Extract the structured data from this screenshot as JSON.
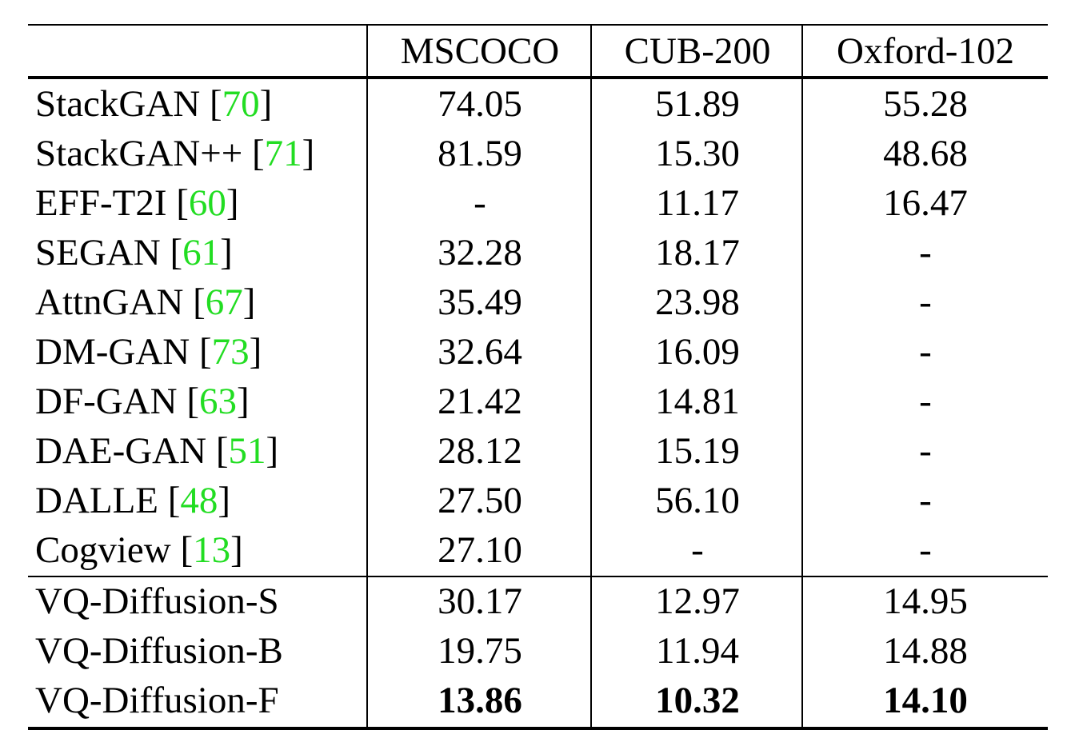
{
  "columns": [
    "MSCOCO",
    "CUB-200",
    "Oxford-102"
  ],
  "baselines": [
    {
      "method": "StackGAN",
      "ref": "70",
      "mscoco": "74.05",
      "cub": "51.89",
      "oxford": "55.28"
    },
    {
      "method": "StackGAN++",
      "ref": "71",
      "mscoco": "81.59",
      "cub": "15.30",
      "oxford": "48.68"
    },
    {
      "method": "EFF-T2I",
      "ref": "60",
      "mscoco": "-",
      "cub": "11.17",
      "oxford": "16.47"
    },
    {
      "method": "SEGAN",
      "ref": "61",
      "mscoco": "32.28",
      "cub": "18.17",
      "oxford": "-"
    },
    {
      "method": "AttnGAN",
      "ref": "67",
      "mscoco": "35.49",
      "cub": "23.98",
      "oxford": "-"
    },
    {
      "method": "DM-GAN",
      "ref": "73",
      "mscoco": "32.64",
      "cub": "16.09",
      "oxford": "-"
    },
    {
      "method": "DF-GAN",
      "ref": "63",
      "mscoco": "21.42",
      "cub": "14.81",
      "oxford": "-"
    },
    {
      "method": "DAE-GAN",
      "ref": "51",
      "mscoco": "28.12",
      "cub": "15.19",
      "oxford": "-"
    },
    {
      "method": "DALLE",
      "ref": "48",
      "mscoco": "27.50",
      "cub": "56.10",
      "oxford": "-"
    },
    {
      "method": "Cogview",
      "ref": "13",
      "mscoco": "27.10",
      "cub": "-",
      "oxford": "-"
    }
  ],
  "ours": [
    {
      "method": "VQ-Diffusion-S",
      "mscoco": "30.17",
      "cub": "12.97",
      "oxford": "14.95"
    },
    {
      "method": "VQ-Diffusion-B",
      "mscoco": "19.75",
      "cub": "11.94",
      "oxford": "14.88"
    },
    {
      "method": "VQ-Diffusion-F",
      "mscoco": "13.86",
      "cub": "10.32",
      "oxford": "14.10",
      "bold": true
    }
  ]
}
